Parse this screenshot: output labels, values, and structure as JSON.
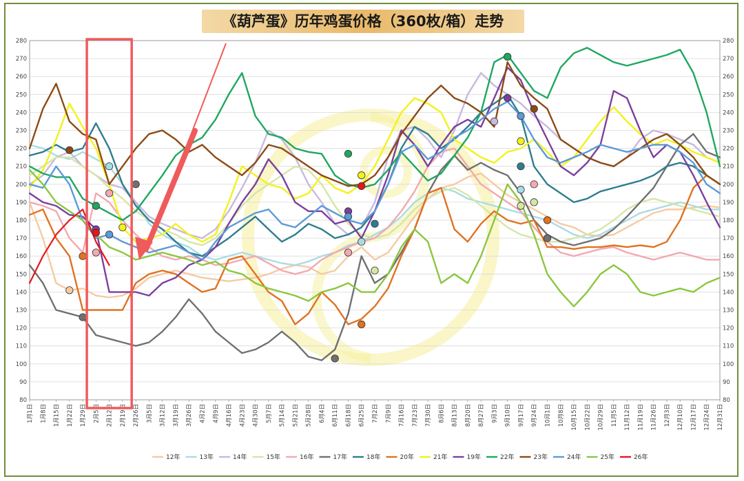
{
  "title": "《葫芦蛋》历年鸡蛋价格（360枚/箱）走势",
  "chart_data": {
    "type": "line",
    "title": "《葫芦蛋》历年鸡蛋价格（360枚/箱）走势",
    "ylim": [
      80,
      280
    ],
    "yticks": [
      80,
      90,
      100,
      110,
      120,
      130,
      140,
      150,
      160,
      170,
      180,
      190,
      200,
      210,
      220,
      230,
      240,
      250,
      260,
      270,
      280
    ],
    "grid": true,
    "legend_position": "bottom",
    "categories": [
      "1月1日",
      "1月8日",
      "1月15日",
      "1月22日",
      "1月29日",
      "2月5日",
      "2月12日",
      "2月19日",
      "2月26日",
      "3月5日",
      "3月12日",
      "3月19日",
      "3月26日",
      "4月2日",
      "4月9日",
      "4月16日",
      "4月23日",
      "4月30日",
      "5月7日",
      "5月14日",
      "5月21日",
      "5月28日",
      "6月4日",
      "6月11日",
      "6月18日",
      "6月25日",
      "7月2日",
      "7月9日",
      "7月16日",
      "7月23日",
      "7月30日",
      "8月6日",
      "8月13日",
      "8月20日",
      "8月27日",
      "9月3日",
      "9月10日",
      "9月17日",
      "9月24日",
      "10月1日",
      "10月8日",
      "10月15日",
      "10月22日",
      "10月29日",
      "11月5日",
      "11月12日",
      "11月19日",
      "11月26日",
      "12月3日",
      "12月10日",
      "12月17日",
      "12月24日",
      "12月31日"
    ],
    "series": [
      {
        "name": "12年",
        "color": "#f6caa1",
        "values": [
          190,
          170,
          145,
          141,
          142,
          138,
          137,
          138,
          142,
          148,
          150,
          152,
          150,
          148,
          147,
          146,
          147,
          148,
          150,
          153,
          155,
          154,
          150,
          152,
          160,
          165,
          158,
          162,
          172,
          182,
          192,
          198,
          200,
          204,
          206,
          200,
          194,
          190,
          186,
          182,
          178,
          176,
          172,
          171,
          172,
          176,
          180,
          184,
          186,
          186,
          187,
          188,
          187
        ]
      },
      {
        "name": "13年",
        "color": "#a8dce3",
        "values": [
          222,
          220,
          216,
          214,
          218,
          214,
          210,
          200,
          190,
          178,
          172,
          168,
          165,
          160,
          158,
          160,
          162,
          160,
          158,
          156,
          155,
          157,
          160,
          162,
          166,
          168,
          172,
          176,
          182,
          190,
          195,
          198,
          196,
          192,
          190,
          188,
          186,
          184,
          182,
          180,
          176,
          172,
          170,
          172,
          176,
          180,
          184,
          186,
          188,
          190,
          188,
          186,
          186
        ]
      },
      {
        "name": "14年",
        "color": "#c7b9df",
        "values": [
          200,
          205,
          215,
          218,
          210,
          205,
          200,
          198,
          190,
          182,
          178,
          175,
          172,
          170,
          175,
          185,
          198,
          212,
          230,
          225,
          215,
          200,
          190,
          178,
          172,
          176,
          190,
          215,
          230,
          232,
          225,
          215,
          230,
          250,
          262,
          255,
          250,
          245,
          238,
          232,
          225,
          220,
          215,
          212,
          210,
          215,
          225,
          230,
          228,
          225,
          222,
          215,
          212
        ]
      },
      {
        "name": "15年",
        "color": "#d6e6a6",
        "values": [
          205,
          210,
          215,
          215,
          210,
          205,
          198,
          192,
          185,
          180,
          175,
          172,
          168,
          166,
          170,
          178,
          188,
          195,
          200,
          205,
          210,
          208,
          200,
          188,
          178,
          172,
          170,
          172,
          178,
          186,
          192,
          196,
          198,
          194,
          188,
          182,
          176,
          172,
          170,
          168,
          168,
          170,
          172,
          175,
          180,
          186,
          190,
          192,
          190,
          188,
          186,
          184,
          182
        ]
      },
      {
        "name": "16年",
        "color": "#f2a9b0",
        "values": [
          190,
          188,
          185,
          170,
          162,
          195,
          190,
          180,
          172,
          165,
          160,
          158,
          160,
          158,
          155,
          156,
          158,
          160,
          156,
          152,
          150,
          152,
          158,
          162,
          165,
          168,
          170,
          176,
          185,
          196,
          210,
          218,
          220,
          210,
          200,
          195,
          190,
          185,
          176,
          168,
          162,
          160,
          162,
          164,
          165,
          162,
          160,
          158,
          160,
          162,
          160,
          158,
          158
        ]
      },
      {
        "name": "17年",
        "color": "#707070",
        "values": [
          155,
          145,
          130,
          128,
          126,
          116,
          114,
          112,
          110,
          112,
          118,
          126,
          136,
          128,
          118,
          112,
          106,
          108,
          112,
          118,
          112,
          104,
          102,
          108,
          128,
          160,
          145,
          150,
          162,
          175,
          195,
          208,
          216,
          208,
          212,
          208,
          205,
          195,
          180,
          172,
          168,
          166,
          168,
          170,
          175,
          182,
          190,
          198,
          210,
          222,
          228,
          218,
          215
        ]
      },
      {
        "name": "18年",
        "color": "#2e7d8e",
        "values": [
          216,
          218,
          222,
          218,
          220,
          234,
          220,
          200,
          188,
          180,
          175,
          168,
          162,
          160,
          165,
          170,
          176,
          182,
          175,
          168,
          172,
          178,
          175,
          170,
          172,
          176,
          185,
          200,
          220,
          232,
          228,
          220,
          225,
          232,
          240,
          245,
          250,
          238,
          210,
          200,
          195,
          190,
          192,
          196,
          198,
          200,
          202,
          205,
          210,
          212,
          210,
          205,
          200
        ]
      },
      {
        "name": "20年",
        "color": "#e07220",
        "values": [
          183,
          186,
          170,
          160,
          130,
          130,
          130,
          130,
          145,
          150,
          152,
          150,
          145,
          140,
          142,
          158,
          160,
          150,
          140,
          135,
          122,
          128,
          140,
          133,
          122,
          125,
          132,
          142,
          160,
          175,
          195,
          198,
          175,
          168,
          178,
          185,
          180,
          178,
          180,
          165,
          165,
          164,
          165,
          165,
          166,
          165,
          166,
          165,
          168,
          180,
          198,
          205,
          200
        ]
      },
      {
        "name": "21年",
        "color": "#f2f21a",
        "values": [
          198,
          208,
          225,
          245,
          232,
          220,
          200,
          176,
          168,
          170,
          172,
          178,
          172,
          168,
          172,
          190,
          210,
          205,
          200,
          198,
          192,
          195,
          205,
          198,
          195,
          200,
          210,
          225,
          240,
          248,
          245,
          240,
          225,
          220,
          215,
          212,
          218,
          220,
          225,
          218,
          210,
          215,
          225,
          235,
          243,
          235,
          228,
          222,
          225,
          222,
          218,
          215,
          212
        ]
      },
      {
        "name": "19年",
        "color": "#7b3f9e",
        "values": [
          195,
          190,
          188,
          183,
          182,
          175,
          140,
          140,
          140,
          138,
          145,
          148,
          155,
          158,
          165,
          178,
          190,
          200,
          214,
          205,
          190,
          185,
          185,
          178,
          180,
          170,
          185,
          205,
          230,
          222,
          210,
          222,
          232,
          236,
          232,
          248,
          265,
          258,
          240,
          225,
          210,
          205,
          212,
          222,
          252,
          248,
          230,
          215,
          222,
          218,
          205,
          190,
          176
        ]
      },
      {
        "name": "22年",
        "color": "#1ea760",
        "values": [
          210,
          206,
          204,
          204,
          192,
          188,
          184,
          180,
          185,
          195,
          205,
          216,
          222,
          226,
          236,
          250,
          262,
          238,
          228,
          226,
          220,
          218,
          217,
          205,
          200,
          198,
          200,
          208,
          218,
          210,
          202,
          206,
          216,
          226,
          240,
          268,
          272,
          262,
          252,
          248,
          265,
          273,
          276,
          272,
          268,
          266,
          268,
          270,
          272,
          275,
          262,
          240,
          210
        ]
      },
      {
        "name": "23年",
        "color": "#8c4a14",
        "values": [
          220,
          242,
          256,
          235,
          228,
          225,
          200,
          210,
          220,
          228,
          230,
          225,
          218,
          222,
          215,
          210,
          205,
          212,
          222,
          220,
          215,
          210,
          205,
          202,
          199,
          200,
          205,
          215,
          228,
          238,
          248,
          255,
          248,
          245,
          240,
          232,
          268,
          255,
          248,
          242,
          225,
          220,
          215,
          212,
          210,
          215,
          220,
          225,
          228,
          222,
          215,
          205,
          200
        ]
      },
      {
        "name": "24年",
        "color": "#5b9ad8",
        "values": [
          200,
          198,
          210,
          200,
          180,
          170,
          172,
          168,
          165,
          162,
          164,
          166,
          162,
          158,
          168,
          176,
          180,
          184,
          186,
          178,
          176,
          182,
          188,
          184,
          180,
          178,
          185,
          200,
          218,
          222,
          214,
          218,
          226,
          230,
          236,
          242,
          246,
          238,
          225,
          215,
          212,
          215,
          218,
          222,
          220,
          218,
          220,
          222,
          222,
          218,
          212,
          200,
          195
        ]
      },
      {
        "name": "25年",
        "color": "#8cc63e",
        "values": [
          208,
          200,
          190,
          185,
          180,
          172,
          165,
          162,
          158,
          160,
          162,
          160,
          158,
          155,
          157,
          152,
          150,
          145,
          142,
          140,
          138,
          135,
          140,
          142,
          145,
          140,
          140,
          150,
          165,
          175,
          168,
          145,
          150,
          145,
          160,
          180,
          200,
          190,
          172,
          150,
          140,
          132,
          140,
          150,
          155,
          150,
          140,
          138,
          140,
          142,
          140,
          145,
          148
        ]
      },
      {
        "name": "26年",
        "color": "#e8141c",
        "values": [
          145,
          160,
          172,
          180,
          186,
          168,
          155,
          null,
          null,
          null,
          null,
          null,
          null,
          null,
          null,
          null,
          null,
          null,
          null,
          null,
          null,
          null,
          null,
          null,
          null,
          null,
          null,
          null,
          null,
          null,
          null,
          null,
          null,
          null,
          null,
          null,
          null,
          null,
          null,
          null,
          null,
          null,
          null,
          null,
          null,
          null,
          null,
          null,
          null,
          null,
          null,
          null,
          null
        ]
      }
    ],
    "markers": [
      {
        "series": "12年",
        "x": 3,
        "y": 141
      },
      {
        "series": "13年",
        "x": 6,
        "y": 210
      },
      {
        "series": "13年",
        "x": 25,
        "y": 168
      },
      {
        "series": "13年",
        "x": 37,
        "y": 197
      },
      {
        "series": "14年",
        "x": 35,
        "y": 235
      },
      {
        "series": "16年",
        "x": 6,
        "y": 195
      },
      {
        "series": "16年",
        "x": 5,
        "y": 162
      },
      {
        "series": "16年",
        "x": 24,
        "y": 162
      },
      {
        "series": "16年",
        "x": 38,
        "y": 200
      },
      {
        "series": "15年",
        "x": 26,
        "y": 152
      },
      {
        "series": "15年",
        "x": 37,
        "y": 188
      },
      {
        "series": "15年",
        "x": 38,
        "y": 190
      },
      {
        "series": "17年",
        "x": 4,
        "y": 126
      },
      {
        "series": "17年",
        "x": 8,
        "y": 200
      },
      {
        "series": "17年",
        "x": 23,
        "y": 103
      },
      {
        "series": "17年",
        "x": 39,
        "y": 170
      },
      {
        "series": "18年",
        "x": 26,
        "y": 178
      },
      {
        "series": "18年",
        "x": 37,
        "y": 210
      },
      {
        "series": "20年",
        "x": 4,
        "y": 160
      },
      {
        "series": "20年",
        "x": 25,
        "y": 122
      },
      {
        "series": "20年",
        "x": 39,
        "y": 180
      },
      {
        "series": "21年",
        "x": 7,
        "y": 176
      },
      {
        "series": "21年",
        "x": 25,
        "y": 205
      },
      {
        "series": "21年",
        "x": 37,
        "y": 224
      },
      {
        "series": "19年",
        "x": 5,
        "y": 175
      },
      {
        "series": "19年",
        "x": 24,
        "y": 185
      },
      {
        "series": "19年",
        "x": 36,
        "y": 248
      },
      {
        "series": "22年",
        "x": 5,
        "y": 188
      },
      {
        "series": "22年",
        "x": 24,
        "y": 217
      },
      {
        "series": "22年",
        "x": 36,
        "y": 271
      },
      {
        "series": "23年",
        "x": 3,
        "y": 219
      },
      {
        "series": "23年",
        "x": 38,
        "y": 242
      },
      {
        "series": "24年",
        "x": 6,
        "y": 172
      },
      {
        "series": "24年",
        "x": 24,
        "y": 182
      },
      {
        "series": "24年",
        "x": 37,
        "y": 238
      },
      {
        "series": "26年",
        "x": 25,
        "y": 199
      },
      {
        "series": "26年",
        "x": 5,
        "y": 173
      }
    ],
    "annotations": [
      {
        "type": "highlight-box",
        "color": "#ef5b5b",
        "from": "1月29日",
        "to": "2月26日"
      },
      {
        "type": "arrow",
        "color": "#ef5b5b",
        "points_to": "2月26日"
      }
    ],
    "watermark": {
      "color": "#f6ef9a"
    }
  }
}
